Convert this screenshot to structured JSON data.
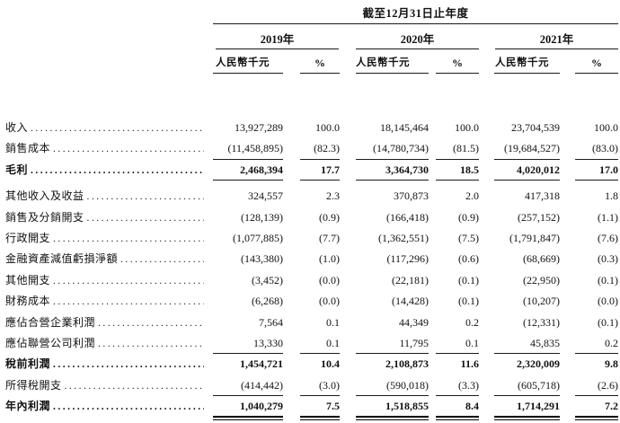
{
  "header": {
    "period_title": "截至12月31日止年度",
    "years": [
      "2019年",
      "2020年",
      "2021年"
    ],
    "currency_label": "人民幣千元",
    "percent_label": "%"
  },
  "table": {
    "rows": [
      {
        "label": "收入",
        "v2019": "13,927,289",
        "p2019": "100.0",
        "v2020": "18,145,464",
        "p2020": "100.0",
        "v2021": "23,704,539",
        "p2021": "100.0",
        "bold": false,
        "rule": "none"
      },
      {
        "label": "銷售成本",
        "v2019": "(11,458,895)",
        "p2019": "(82.3)",
        "v2020": "(14,780,734)",
        "p2020": "(81.5)",
        "v2021": "(19,684,527)",
        "p2021": "(83.0)",
        "bold": false,
        "rule": "single"
      },
      {
        "label": "毛利",
        "v2019": "2,468,394",
        "p2019": "17.7",
        "v2020": "3,364,730",
        "p2020": "18.5",
        "v2021": "4,020,012",
        "p2021": "17.0",
        "bold": true,
        "rule": "single",
        "gap_after": true
      },
      {
        "label": "其他收入及收益",
        "v2019": "324,557",
        "p2019": "2.3",
        "v2020": "370,873",
        "p2020": "2.0",
        "v2021": "417,318",
        "p2021": "1.8",
        "bold": false,
        "rule": "none"
      },
      {
        "label": "銷售及分銷開支",
        "v2019": "(128,139)",
        "p2019": "(0.9)",
        "v2020": "(166,418)",
        "p2020": "(0.9)",
        "v2021": "(257,152)",
        "p2021": "(1.1)",
        "bold": false,
        "rule": "none"
      },
      {
        "label": "行政開支",
        "v2019": "(1,077,885)",
        "p2019": "(7.7)",
        "v2020": "(1,362,551)",
        "p2020": "(7.5)",
        "v2021": "(1,791,847)",
        "p2021": "(7.6)",
        "bold": false,
        "rule": "none"
      },
      {
        "label": "金融資產減值虧損淨額",
        "v2019": "(143,380)",
        "p2019": "(1.0)",
        "v2020": "(117,296)",
        "p2020": "(0.6)",
        "v2021": "(68,669)",
        "p2021": "(0.3)",
        "bold": false,
        "rule": "none"
      },
      {
        "label": "其他開支",
        "v2019": "(3,452)",
        "p2019": "(0.0)",
        "v2020": "(22,181)",
        "p2020": "(0.1)",
        "v2021": "(22,950)",
        "p2021": "(0.1)",
        "bold": false,
        "rule": "none"
      },
      {
        "label": "財務成本",
        "v2019": "(6,268)",
        "p2019": "(0.0)",
        "v2020": "(14,428)",
        "p2020": "(0.1)",
        "v2021": "(10,207)",
        "p2021": "(0.0)",
        "bold": false,
        "rule": "none"
      },
      {
        "label": "應佔合營企業利潤",
        "v2019": "7,564",
        "p2019": "0.1",
        "v2020": "44,349",
        "p2020": "0.2",
        "v2021": "(12,331)",
        "p2021": "(0.1)",
        "bold": false,
        "rule": "none"
      },
      {
        "label": "應佔聯營公司利潤",
        "v2019": "13,330",
        "p2019": "0.1",
        "v2020": "11,795",
        "p2020": "0.1",
        "v2021": "45,835",
        "p2021": "0.2",
        "bold": false,
        "rule": "single"
      },
      {
        "label": "稅前利潤",
        "v2019": "1,454,721",
        "p2019": "10.4",
        "v2020": "2,108,873",
        "p2020": "11.6",
        "v2021": "2,320,009",
        "p2021": "9.8",
        "bold": true,
        "rule": "none"
      },
      {
        "label": "所得稅開支",
        "v2019": "(414,442)",
        "p2019": "(3.0)",
        "v2020": "(590,018)",
        "p2020": "(3.3)",
        "v2021": "(605,718)",
        "p2021": "(2.6)",
        "bold": false,
        "rule": "single"
      },
      {
        "label": "年內利潤",
        "v2019": "1,040,279",
        "p2019": "7.5",
        "v2020": "1,518,855",
        "p2020": "8.4",
        "v2021": "1,714,291",
        "p2021": "7.2",
        "bold": true,
        "rule": "double"
      }
    ]
  },
  "colors": {
    "text": "#111111",
    "rule_line": "#1a1a1a",
    "background": "#ffffff"
  }
}
